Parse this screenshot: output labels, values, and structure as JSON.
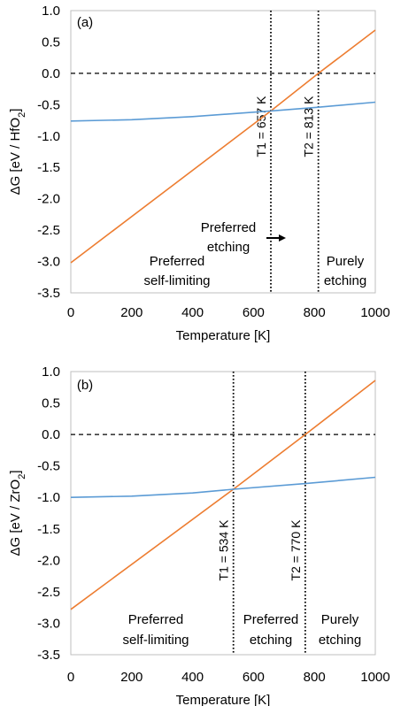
{
  "chart_data": [
    {
      "type": "line",
      "panel_label": "(a)",
      "xlabel": "Temperature [K]",
      "ylabel_main": "ΔG [eV / HfO",
      "ylabel_sub": "2",
      "ylabel_end": "]",
      "xlim": [
        0,
        1000
      ],
      "ylim": [
        -3.5,
        1.0
      ],
      "xticks": [
        "0",
        "200",
        "400",
        "600",
        "800",
        "1000"
      ],
      "yticks": [
        "1.0",
        "0.5",
        "0.0",
        "-0.5",
        "-1.0",
        "-1.5",
        "-2.0",
        "-2.5",
        "-3.0",
        "-3.5"
      ],
      "grid": false,
      "series": [
        {
          "color": "#ed7d31",
          "x": [
            0,
            657,
            813,
            1000
          ],
          "y": [
            -3.02,
            -0.6,
            0.0,
            0.69
          ]
        },
        {
          "color": "#5b9bd5",
          "x": [
            0,
            200,
            400,
            657,
            813,
            1000
          ],
          "y": [
            -0.76,
            -0.74,
            -0.69,
            -0.6,
            -0.54,
            -0.46
          ]
        }
      ],
      "zero_line": {
        "y": 0,
        "style": "dashed"
      },
      "vlines": [
        {
          "x": 657,
          "label": "T1 = 657 K"
        },
        {
          "x": 813,
          "label": "T2 = 813 K"
        }
      ],
      "regions": [
        {
          "lines": [
            "Preferred",
            "self-limiting"
          ]
        },
        {
          "lines": [
            "Preferred",
            "etching"
          ],
          "arrow": true
        },
        {
          "lines": [
            "Purely",
            "etching"
          ]
        }
      ]
    },
    {
      "type": "line",
      "panel_label": "(b)",
      "xlabel": "Temperature [K]",
      "ylabel_main": "ΔG [eV / ZrO",
      "ylabel_sub": "2",
      "ylabel_end": "]",
      "xlim": [
        0,
        1000
      ],
      "ylim": [
        -3.5,
        1.0
      ],
      "xticks": [
        "0",
        "200",
        "400",
        "600",
        "800",
        "1000"
      ],
      "yticks": [
        "1.0",
        "0.5",
        "0.0",
        "-0.5",
        "-1.0",
        "-1.5",
        "-2.0",
        "-2.5",
        "-3.0",
        "-3.5"
      ],
      "grid": false,
      "series": [
        {
          "color": "#ed7d31",
          "x": [
            0,
            534,
            770,
            1000
          ],
          "y": [
            -2.78,
            -0.87,
            0.0,
            0.86
          ]
        },
        {
          "color": "#5b9bd5",
          "x": [
            0,
            200,
            400,
            534,
            770,
            1000
          ],
          "y": [
            -1.0,
            -0.98,
            -0.93,
            -0.87,
            -0.78,
            -0.68
          ]
        }
      ],
      "zero_line": {
        "y": 0,
        "style": "dashed"
      },
      "vlines": [
        {
          "x": 534,
          "label": "T1 = 534 K"
        },
        {
          "x": 770,
          "label": "T2 = 770 K"
        }
      ],
      "regions": [
        {
          "lines": [
            "Preferred",
            "self-limiting"
          ]
        },
        {
          "lines": [
            "Preferred",
            "etching"
          ]
        },
        {
          "lines": [
            "Purely",
            "etching"
          ]
        }
      ]
    }
  ]
}
